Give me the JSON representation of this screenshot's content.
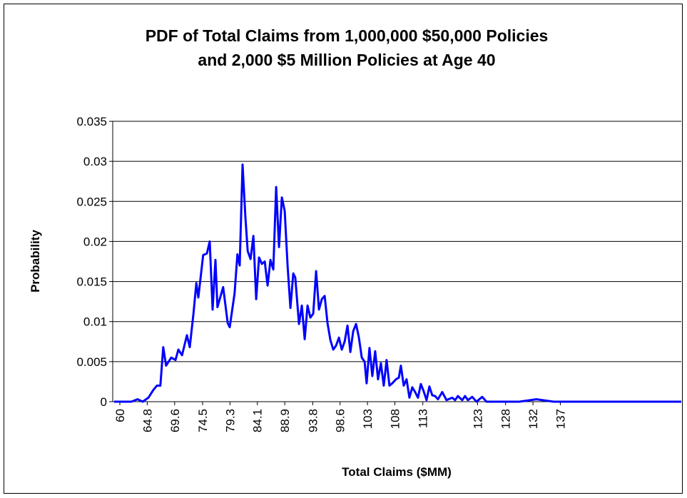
{
  "chart_data": {
    "type": "line",
    "title": [
      "PDF of Total Claims from 1,000,000 $50,000 Policies",
      "and 2,000 $5 Million Policies at Age 40"
    ],
    "x_label": "Total Claims ($MM)",
    "y_label": "Probability",
    "x": [
      59,
      61,
      62,
      63.1,
      64,
      65,
      65.9,
      66.5,
      67.1,
      67.6,
      68.1,
      69,
      69.75,
      70.25,
      70.9,
      71.75,
      72.25,
      72.9,
      73.4,
      73.75,
      74.6,
      75.25,
      75.75,
      76.25,
      76.75,
      77.1,
      78.1,
      78.9,
      79.25,
      80.1,
      80.6,
      81,
      81.5,
      82,
      82.4,
      82.9,
      83.4,
      83.9,
      84.4,
      84.9,
      85.4,
      85.9,
      86.4,
      86.9,
      87.4,
      87.9,
      88.4,
      88.9,
      89.4,
      89.9,
      90.4,
      90.75,
      91.4,
      91.9,
      92.4,
      92.9,
      93.4,
      93.9,
      94.4,
      94.9,
      95.4,
      95.9,
      96.4,
      96.9,
      97.4,
      97.9,
      98.4,
      98.9,
      99.4,
      99.9,
      100.4,
      100.9,
      101.4,
      101.9,
      102.4,
      102.9,
      103.25,
      103.75,
      104.25,
      104.75,
      105.25,
      105.75,
      106.25,
      106.75,
      107.25,
      107.75,
      108.4,
      108.9,
      109.25,
      109.75,
      110.25,
      110.75,
      111.25,
      111.75,
      112.25,
      112.75,
      113.25,
      113.75,
      114.25,
      114.75,
      115.25,
      115.75,
      116.5,
      117.25,
      118.25,
      118.75,
      119.25,
      120,
      120.5,
      121,
      121.75,
      122.5,
      123.5,
      124.25,
      130,
      133,
      136,
      158.4
    ],
    "values": [
      0,
      0,
      0,
      0.0003,
      0,
      0.0005,
      0.0015,
      0.002,
      0.002,
      0.0068,
      0.0045,
      0.0055,
      0.0052,
      0.0065,
      0.0058,
      0.0083,
      0.0068,
      0.011,
      0.0148,
      0.013,
      0.0183,
      0.0185,
      0.02,
      0.0115,
      0.0177,
      0.0118,
      0.0143,
      0.0098,
      0.0093,
      0.0135,
      0.0184,
      0.017,
      0.0296,
      0.023,
      0.0188,
      0.0178,
      0.0207,
      0.0128,
      0.018,
      0.0172,
      0.0175,
      0.0145,
      0.0177,
      0.0165,
      0.0268,
      0.0193,
      0.0255,
      0.0238,
      0.017,
      0.0117,
      0.016,
      0.0155,
      0.0097,
      0.012,
      0.0078,
      0.012,
      0.0105,
      0.011,
      0.0163,
      0.0115,
      0.0128,
      0.0132,
      0.0098,
      0.0077,
      0.0065,
      0.007,
      0.008,
      0.0065,
      0.0075,
      0.0095,
      0.0062,
      0.0088,
      0.0097,
      0.008,
      0.0055,
      0.005,
      0.0023,
      0.0067,
      0.0032,
      0.0063,
      0.0028,
      0.0048,
      0.002,
      0.0052,
      0.002,
      0.0023,
      0.0028,
      0.003,
      0.0045,
      0.002,
      0.0028,
      0.0005,
      0.0018,
      0.0012,
      0.0005,
      0.0022,
      0.0013,
      0.0002,
      0.0019,
      0.0008,
      0.0007,
      0.0003,
      0.0012,
      0.0002,
      0.0005,
      0.0002,
      0.0007,
      0.0002,
      0.0007,
      0.0002,
      0.0006,
      0,
      0.0006,
      0,
      0,
      0.0003,
      0,
      0
    ],
    "color": "#0000ff",
    "xlim": [
      58.75,
      158.4
    ],
    "xticks": [
      {
        "value": 60,
        "label": "60"
      },
      {
        "value": 64.8,
        "label": "64.8"
      },
      {
        "value": 69.6,
        "label": "69.6"
      },
      {
        "value": 74.5,
        "label": "74.5"
      },
      {
        "value": 79.3,
        "label": "79.3"
      },
      {
        "value": 84.1,
        "label": "84.1"
      },
      {
        "value": 88.9,
        "label": "88.9"
      },
      {
        "value": 93.8,
        "label": "93.8"
      },
      {
        "value": 98.6,
        "label": "98.6"
      },
      {
        "value": 103.4,
        "label": "103"
      },
      {
        "value": 108.2,
        "label": "108"
      },
      {
        "value": 113.1,
        "label": "113"
      },
      {
        "value": 122.7,
        "label": "123"
      },
      {
        "value": 127.6,
        "label": "128"
      },
      {
        "value": 132.4,
        "label": "132"
      },
      {
        "value": 137.2,
        "label": "137"
      }
    ],
    "ylim": [
      0,
      0.035
    ],
    "yticks": [
      0,
      0.005,
      0.01,
      0.015,
      0.02,
      0.025,
      0.03,
      0.035
    ],
    "grid": true
  }
}
